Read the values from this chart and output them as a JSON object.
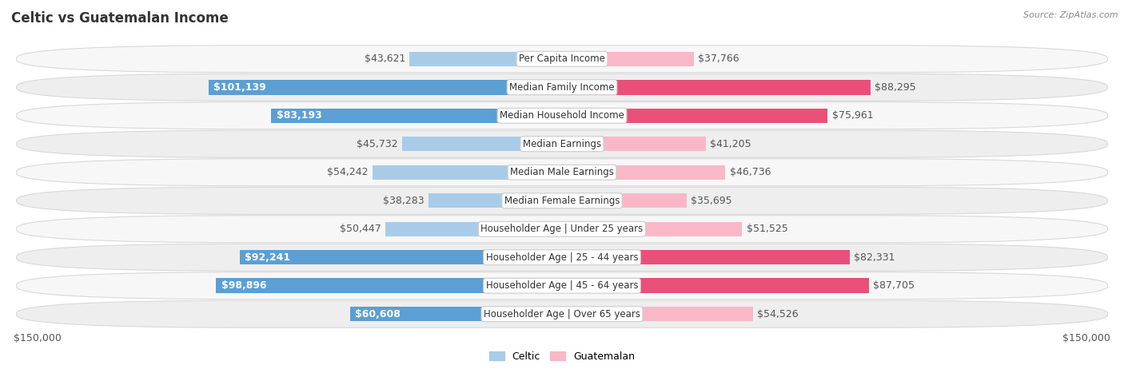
{
  "title": "Celtic vs Guatemalan Income",
  "source": "Source: ZipAtlas.com",
  "categories": [
    "Per Capita Income",
    "Median Family Income",
    "Median Household Income",
    "Median Earnings",
    "Median Male Earnings",
    "Median Female Earnings",
    "Householder Age | Under 25 years",
    "Householder Age | 25 - 44 years",
    "Householder Age | 45 - 64 years",
    "Householder Age | Over 65 years"
  ],
  "celtic_values": [
    43621,
    101139,
    83193,
    45732,
    54242,
    38283,
    50447,
    92241,
    98896,
    60608
  ],
  "guatemalan_values": [
    37766,
    88295,
    75961,
    41205,
    46736,
    35695,
    51525,
    82331,
    87705,
    54526
  ],
  "celtic_labels": [
    "$43,621",
    "$101,139",
    "$83,193",
    "$45,732",
    "$54,242",
    "$38,283",
    "$50,447",
    "$92,241",
    "$98,896",
    "$60,608"
  ],
  "guatemalan_labels": [
    "$37,766",
    "$88,295",
    "$75,961",
    "$41,205",
    "$46,736",
    "$35,695",
    "$51,525",
    "$82,331",
    "$87,705",
    "$54,526"
  ],
  "max_value": 150000,
  "celtic_color_light": "#a8cce8",
  "celtic_color_dark": "#5b9fd4",
  "guatemalan_color_light": "#f8b8c8",
  "guatemalan_color_dark": "#e8507a",
  "inside_label_threshold": 55000,
  "bar_height": 0.52,
  "label_fontsize": 9,
  "category_fontsize": 8.5,
  "title_fontsize": 12,
  "legend_fontsize": 9,
  "outside_label_color": "#555555",
  "inside_label_color": "#ffffff",
  "row_bg_light": "#f7f7f7",
  "row_bg_dark": "#eeeeee",
  "row_border": "#d8d8d8"
}
